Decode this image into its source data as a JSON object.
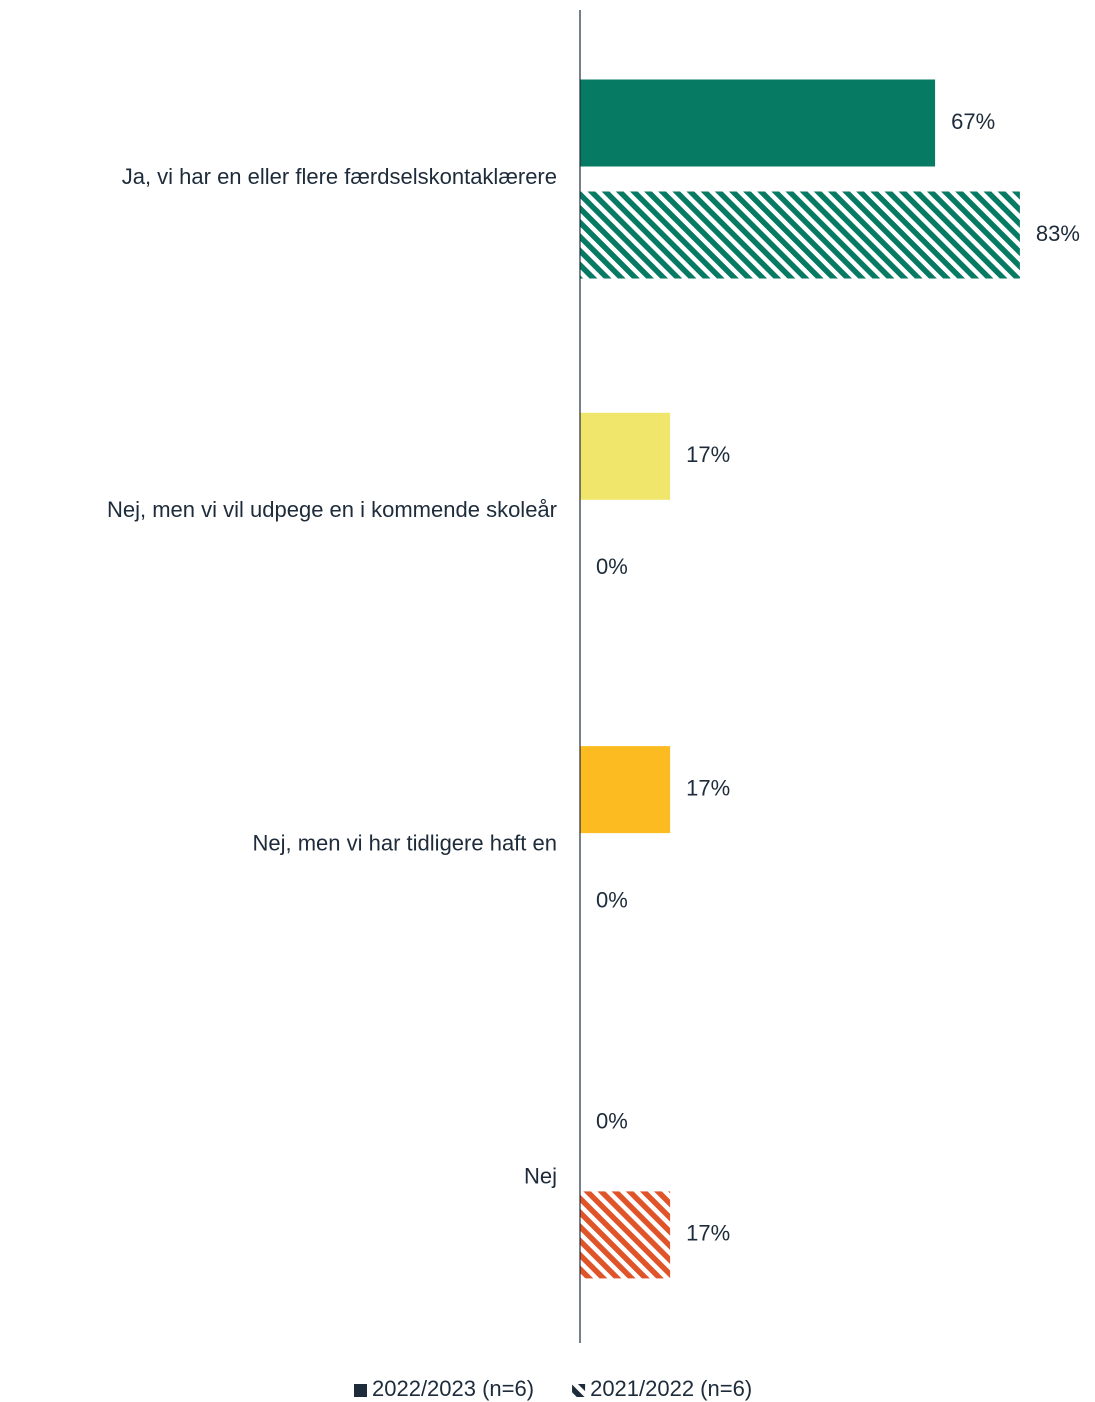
{
  "chart_data": {
    "type": "bar",
    "orientation": "horizontal",
    "categories": [
      "Ja, vi har en eller flere færdselskontaklærere",
      "Nej, men vi vil udpege en i kommende skoleår",
      "Nej, men vi har tidligere haft en",
      "Nej"
    ],
    "colors": [
      "#067a62",
      "#f0e66c",
      "#fbbb21",
      "#e0542a"
    ],
    "legend_marker_color": "#1d2b3a",
    "series": [
      {
        "name": "2022/2023 (n=6)",
        "pattern": "solid",
        "values": [
          67,
          17,
          17,
          0
        ],
        "value_labels": [
          "67%",
          "17%",
          "17%",
          "0%"
        ]
      },
      {
        "name": "2021/2022 (n=6)",
        "pattern": "hatch",
        "values": [
          83,
          0,
          0,
          17
        ],
        "value_labels": [
          "83%",
          "0%",
          "0%",
          "17%"
        ]
      }
    ],
    "xlim": [
      0,
      100
    ],
    "grid": false,
    "legend": "bottom"
  }
}
